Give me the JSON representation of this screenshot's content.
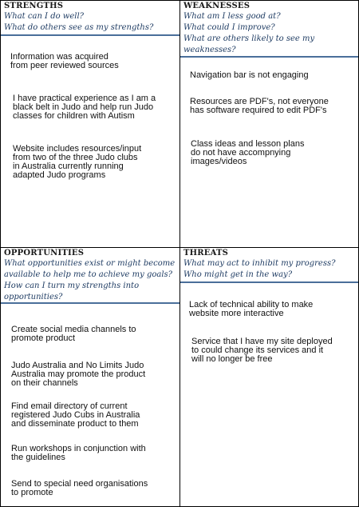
{
  "strengths": {
    "title": "STRENGTHS",
    "questions": [
      "What can I do well?",
      "What do others see as my strengths?"
    ],
    "items": [
      "Information was acquired\nfrom peer reviewed sources",
      "I have practical experience as I am a\nblack belt in Judo and help run Judo\nclasses for children with Autism",
      "Website includes resources/input\nfrom two of the three Judo clubs\nin Australia currently running\nadapted Judo programs"
    ]
  },
  "weaknesses": {
    "title": "WEAKNESSES",
    "questions": [
      "What am I less good at?",
      "What could I improve?",
      "What are others likely to see my\nweaknesses?"
    ],
    "items": [
      "Navigation bar is not engaging",
      "Resources are PDF's, not everyone\nhas software required to edit PDF's",
      "Class ideas and lesson plans\ndo not have accompnying\nimages/videos"
    ]
  },
  "opportunities": {
    "title": "OPPORTUNITIES",
    "questions": [
      "What opportunities exist or might become\navailable to help me to achieve my goals?",
      "How can I turn my strengths into\nopportunities?"
    ],
    "items": [
      "Create social media channels to\npromote product",
      "Judo Australia and No Limits Judo\nAustralia may promote the product\non their channels",
      "Find email directory of current\nregistered Judo Cubs in Australia\nand disseminate product to them",
      "Run workshops in conjunction with\nthe guidelines",
      "Send to special need organisations\nto promote"
    ]
  },
  "threats": {
    "title": "THREATS",
    "questions": [
      "What may act to inhibit my progress?",
      "Who might get in the way?"
    ],
    "items": [
      "Lack of technical ability to make\nwebsite more interactive",
      "Service that I have my site deployed\nto could change its services and it\nwill no longer be free"
    ]
  }
}
